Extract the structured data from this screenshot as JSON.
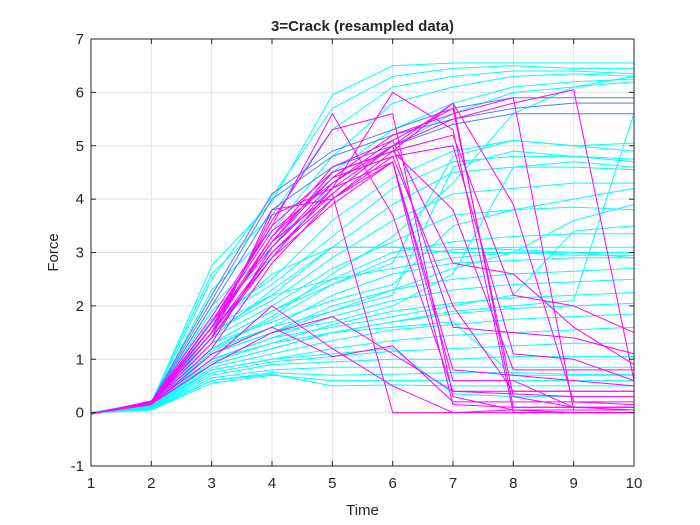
{
  "chart_data": {
    "type": "line",
    "title": "3=Crack (resampled data)",
    "xlabel": "Time",
    "ylabel": "Force",
    "xlim": [
      1,
      10
    ],
    "ylim": [
      -1,
      7
    ],
    "x_ticks": [
      1,
      2,
      3,
      4,
      5,
      6,
      7,
      8,
      9,
      10
    ],
    "y_ticks": [
      -1,
      0,
      1,
      2,
      3,
      4,
      5,
      6,
      7
    ],
    "grid": true,
    "x": [
      1,
      2,
      3,
      4,
      5,
      6,
      7,
      8,
      9,
      10
    ],
    "series_colors": {
      "cyan": "#00ffff",
      "magenta": "#ff00ff",
      "blue": "#4f7ff0"
    },
    "series": [
      {
        "color": "cyan",
        "values": [
          0.0,
          0.18,
          2.75,
          3.95,
          5.95,
          6.5,
          6.55,
          6.55,
          6.55,
          6.55
        ]
      },
      {
        "color": "cyan",
        "values": [
          -0.02,
          0.17,
          2.5,
          4.05,
          5.7,
          6.3,
          6.45,
          6.5,
          6.45,
          6.45
        ]
      },
      {
        "color": "cyan",
        "values": [
          0.0,
          0.2,
          2.6,
          3.7,
          5.3,
          6.1,
          6.3,
          6.4,
          6.4,
          6.35
        ]
      },
      {
        "color": "cyan",
        "values": [
          -0.01,
          0.15,
          2.3,
          3.4,
          4.8,
          5.8,
          6.1,
          6.3,
          6.35,
          6.3
        ]
      },
      {
        "color": "cyan",
        "values": [
          0.0,
          0.14,
          2.0,
          3.1,
          4.5,
          5.3,
          5.8,
          6.1,
          6.2,
          6.25
        ]
      },
      {
        "color": "cyan",
        "values": [
          0.0,
          0.15,
          1.9,
          2.9,
          4.3,
          5.0,
          5.6,
          6.0,
          6.1,
          6.2
        ]
      },
      {
        "color": "cyan",
        "values": [
          0.0,
          0.13,
          1.75,
          2.5,
          3.6,
          4.4,
          4.9,
          5.1,
          5.0,
          5.05
        ]
      },
      {
        "color": "cyan",
        "values": [
          -0.02,
          0.14,
          1.7,
          2.4,
          3.3,
          4.2,
          4.7,
          4.8,
          4.8,
          4.75
        ]
      },
      {
        "color": "cyan",
        "values": [
          0.0,
          0.12,
          1.6,
          2.2,
          3.1,
          3.9,
          4.5,
          4.6,
          4.6,
          4.55
        ]
      },
      {
        "color": "cyan",
        "values": [
          0.0,
          0.12,
          1.5,
          2.1,
          2.9,
          3.6,
          4.1,
          4.2,
          4.3,
          4.3
        ]
      },
      {
        "color": "cyan",
        "values": [
          0.0,
          0.11,
          1.4,
          2.0,
          2.7,
          3.2,
          3.7,
          3.8,
          3.85,
          3.8
        ]
      },
      {
        "color": "cyan",
        "values": [
          0.0,
          0.11,
          1.3,
          1.9,
          2.5,
          3.0,
          3.2,
          3.3,
          3.35,
          3.35
        ]
      },
      {
        "color": "cyan",
        "values": [
          0.0,
          0.11,
          1.2,
          1.75,
          2.4,
          2.9,
          3.05,
          3.1,
          3.1,
          3.1
        ]
      },
      {
        "color": "cyan",
        "values": [
          0.0,
          0.1,
          1.15,
          1.6,
          2.2,
          2.6,
          2.8,
          2.85,
          2.9,
          2.9
        ]
      },
      {
        "color": "cyan",
        "values": [
          0.0,
          0.1,
          1.1,
          1.5,
          2.0,
          2.3,
          2.5,
          2.6,
          2.65,
          2.7
        ]
      },
      {
        "color": "cyan",
        "values": [
          0.0,
          0.1,
          1.0,
          1.4,
          1.8,
          2.1,
          2.3,
          2.4,
          2.45,
          2.5
        ]
      },
      {
        "color": "cyan",
        "values": [
          0.0,
          0.09,
          0.95,
          1.3,
          1.65,
          1.9,
          2.05,
          2.15,
          2.2,
          2.25
        ]
      },
      {
        "color": "cyan",
        "values": [
          0.0,
          0.09,
          0.9,
          1.2,
          1.5,
          1.7,
          1.85,
          1.95,
          2.0,
          2.05
        ]
      },
      {
        "color": "cyan",
        "values": [
          0.0,
          0.08,
          0.85,
          1.1,
          1.35,
          1.55,
          1.65,
          1.75,
          1.8,
          1.85
        ]
      },
      {
        "color": "cyan",
        "values": [
          0.0,
          0.08,
          0.8,
          1.0,
          1.2,
          1.35,
          1.45,
          1.5,
          1.55,
          1.6
        ]
      },
      {
        "color": "cyan",
        "values": [
          0.0,
          0.07,
          0.75,
          0.95,
          1.05,
          1.15,
          1.2,
          1.25,
          1.3,
          1.3
        ]
      },
      {
        "color": "cyan",
        "values": [
          0.0,
          0.07,
          0.7,
          0.9,
          0.95,
          1.0,
          1.0,
          1.05,
          1.05,
          1.05
        ]
      },
      {
        "color": "cyan",
        "values": [
          0.0,
          0.06,
          0.65,
          0.8,
          0.85,
          0.85,
          0.85,
          0.85,
          0.85,
          0.85
        ]
      },
      {
        "color": "cyan",
        "values": [
          0.0,
          0.06,
          0.6,
          0.75,
          0.7,
          0.72,
          0.75,
          0.75,
          0.72,
          0.72
        ]
      },
      {
        "color": "cyan",
        "values": [
          0.0,
          0.05,
          0.55,
          0.7,
          0.6,
          0.6,
          0.6,
          0.6,
          0.6,
          0.6
        ]
      },
      {
        "color": "cyan",
        "values": [
          0.0,
          0.05,
          0.6,
          0.72,
          0.5,
          0.52,
          0.5,
          0.5,
          0.5,
          0.5
        ]
      },
      {
        "color": "cyan",
        "values": [
          0.0,
          0.1,
          1.4,
          2.3,
          3.1,
          3.1,
          3.1,
          3.05,
          3.0,
          3.0
        ]
      },
      {
        "color": "cyan",
        "values": [
          0.0,
          0.12,
          1.6,
          2.6,
          3.1,
          3.1,
          3.0,
          3.0,
          2.95,
          2.95
        ]
      },
      {
        "color": "cyan",
        "values": [
          0.0,
          0.1,
          1.3,
          1.9,
          2.4,
          2.8,
          4.8,
          5.1,
          5.0,
          4.9
        ]
      },
      {
        "color": "cyan",
        "values": [
          0.0,
          0.1,
          1.2,
          1.6,
          1.9,
          2.2,
          4.6,
          4.9,
          4.8,
          4.7
        ]
      },
      {
        "color": "cyan",
        "values": [
          0.0,
          0.1,
          1.1,
          1.5,
          1.7,
          2.0,
          2.6,
          4.6,
          4.7,
          4.6
        ]
      },
      {
        "color": "cyan",
        "values": [
          0.0,
          0.1,
          1.0,
          1.4,
          1.6,
          1.8,
          2.0,
          2.2,
          3.4,
          3.5
        ]
      },
      {
        "color": "cyan",
        "values": [
          0.0,
          0.1,
          1.2,
          1.8,
          2.6,
          3.3,
          4.3,
          5.6,
          6.1,
          6.3
        ]
      },
      {
        "color": "cyan",
        "values": [
          0.0,
          0.09,
          0.9,
          1.2,
          1.5,
          1.7,
          1.9,
          2.0,
          2.1,
          5.6
        ]
      },
      {
        "color": "cyan",
        "values": [
          0.0,
          0.1,
          1.1,
          1.5,
          1.9,
          2.3,
          2.7,
          3.0,
          3.6,
          3.9
        ]
      },
      {
        "color": "cyan",
        "values": [
          0.0,
          0.1,
          1.3,
          1.7,
          2.1,
          2.4,
          3.5,
          3.8,
          4.0,
          4.2
        ]
      },
      {
        "color": "cyan",
        "values": [
          0.0,
          0.11,
          1.5,
          2.2,
          2.5,
          2.7,
          2.9,
          3.0,
          3.0,
          2.9
        ]
      },
      {
        "color": "cyan",
        "values": [
          0.0,
          0.1,
          0.8,
          1.0,
          1.1,
          1.2,
          0.35,
          0.3,
          0.3,
          0.3
        ]
      },
      {
        "color": "cyan",
        "values": [
          0.0,
          0.1,
          1.0,
          1.3,
          1.5,
          1.6,
          1.7,
          0.7,
          0.7,
          0.7
        ]
      },
      {
        "color": "blue",
        "values": [
          -0.02,
          0.2,
          2.2,
          4.1,
          4.9,
          5.3,
          5.7,
          5.9,
          5.9,
          5.9
        ]
      },
      {
        "color": "blue",
        "values": [
          -0.02,
          0.19,
          2.1,
          4.0,
          4.8,
          5.2,
          5.5,
          5.7,
          5.8,
          5.8
        ]
      },
      {
        "color": "blue",
        "values": [
          -0.02,
          0.18,
          2.0,
          3.8,
          4.6,
          5.0,
          5.4,
          5.6,
          5.6,
          5.6
        ]
      },
      {
        "color": "magenta",
        "values": [
          -0.03,
          0.22,
          1.6,
          3.2,
          4.1,
          5.0,
          5.8,
          3.9,
          0.2,
          0.15
        ]
      },
      {
        "color": "magenta",
        "values": [
          -0.03,
          0.21,
          1.7,
          3.4,
          4.3,
          5.1,
          5.7,
          0.3,
          0.1,
          0.1
        ]
      },
      {
        "color": "magenta",
        "values": [
          -0.02,
          0.2,
          1.5,
          3.0,
          4.0,
          4.9,
          5.8,
          0.1,
          0.1,
          0.05
        ]
      },
      {
        "color": "magenta",
        "values": [
          -0.02,
          0.2,
          1.6,
          3.3,
          4.4,
          5.2,
          5.6,
          5.9,
          0.05,
          0.05
        ]
      },
      {
        "color": "magenta",
        "values": [
          -0.02,
          0.2,
          1.7,
          3.1,
          4.2,
          5.0,
          5.5,
          5.8,
          6.05,
          0.6
        ]
      },
      {
        "color": "magenta",
        "values": [
          -0.02,
          0.21,
          1.8,
          3.5,
          5.6,
          3.7,
          0.4,
          0.35,
          0.3,
          0.3
        ]
      },
      {
        "color": "magenta",
        "values": [
          -0.02,
          0.2,
          1.6,
          3.6,
          5.3,
          5.6,
          0.3,
          0.05,
          0.0,
          0.0
        ]
      },
      {
        "color": "magenta",
        "values": [
          -0.02,
          0.19,
          1.5,
          3.7,
          4.2,
          6.0,
          5.3,
          0.0,
          0.0,
          0.0
        ]
      },
      {
        "color": "magenta",
        "values": [
          -0.02,
          0.2,
          1.4,
          3.8,
          4.0,
          4.8,
          2.0,
          0.4,
          0.4,
          0.4
        ]
      },
      {
        "color": "magenta",
        "values": [
          -0.02,
          0.19,
          1.5,
          2.9,
          3.9,
          4.7,
          0.15,
          0.1,
          0.1,
          0.1
        ]
      },
      {
        "color": "magenta",
        "values": [
          -0.02,
          0.18,
          1.4,
          3.0,
          4.1,
          0.0,
          0.0,
          0.0,
          0.0,
          0.0
        ]
      },
      {
        "color": "magenta",
        "values": [
          -0.02,
          0.19,
          1.6,
          3.2,
          4.5,
          4.9,
          3.8,
          0.8,
          0.8,
          0.8
        ]
      },
      {
        "color": "magenta",
        "values": [
          -0.02,
          0.2,
          1.5,
          3.3,
          4.6,
          5.1,
          2.8,
          2.6,
          1.6,
          0.9
        ]
      },
      {
        "color": "magenta",
        "values": [
          -0.02,
          0.18,
          1.3,
          3.1,
          4.3,
          5.0,
          1.6,
          1.5,
          1.4,
          1.1
        ]
      },
      {
        "color": "magenta",
        "values": [
          -0.02,
          0.17,
          1.2,
          2.8,
          4.0,
          4.7,
          0.8,
          0.7,
          0.6,
          0.5
        ]
      },
      {
        "color": "magenta",
        "values": [
          -0.02,
          0.16,
          0.9,
          1.5,
          1.8,
          1.1,
          0.4,
          0.4,
          0.4,
          0.4
        ]
      },
      {
        "color": "magenta",
        "values": [
          -0.02,
          0.15,
          1.1,
          1.6,
          1.05,
          1.25,
          0.2,
          0.2,
          0.2,
          0.2
        ]
      },
      {
        "color": "magenta",
        "values": [
          -0.02,
          0.17,
          1.0,
          2.0,
          1.2,
          0.5,
          0.0,
          0.05,
          0.05,
          0.05
        ]
      },
      {
        "color": "magenta",
        "values": [
          -0.02,
          0.2,
          1.7,
          3.5,
          4.5,
          4.9,
          5.2,
          2.2,
          2.0,
          1.5
        ]
      },
      {
        "color": "magenta",
        "values": [
          -0.02,
          0.18,
          1.6,
          3.2,
          4.4,
          4.8,
          5.0,
          1.1,
          1.0,
          0.6
        ]
      },
      {
        "color": "magenta",
        "values": [
          -0.02,
          0.19,
          1.4,
          2.9,
          4.2,
          4.7,
          0.6,
          0.6,
          0.1,
          0.1
        ]
      }
    ]
  }
}
